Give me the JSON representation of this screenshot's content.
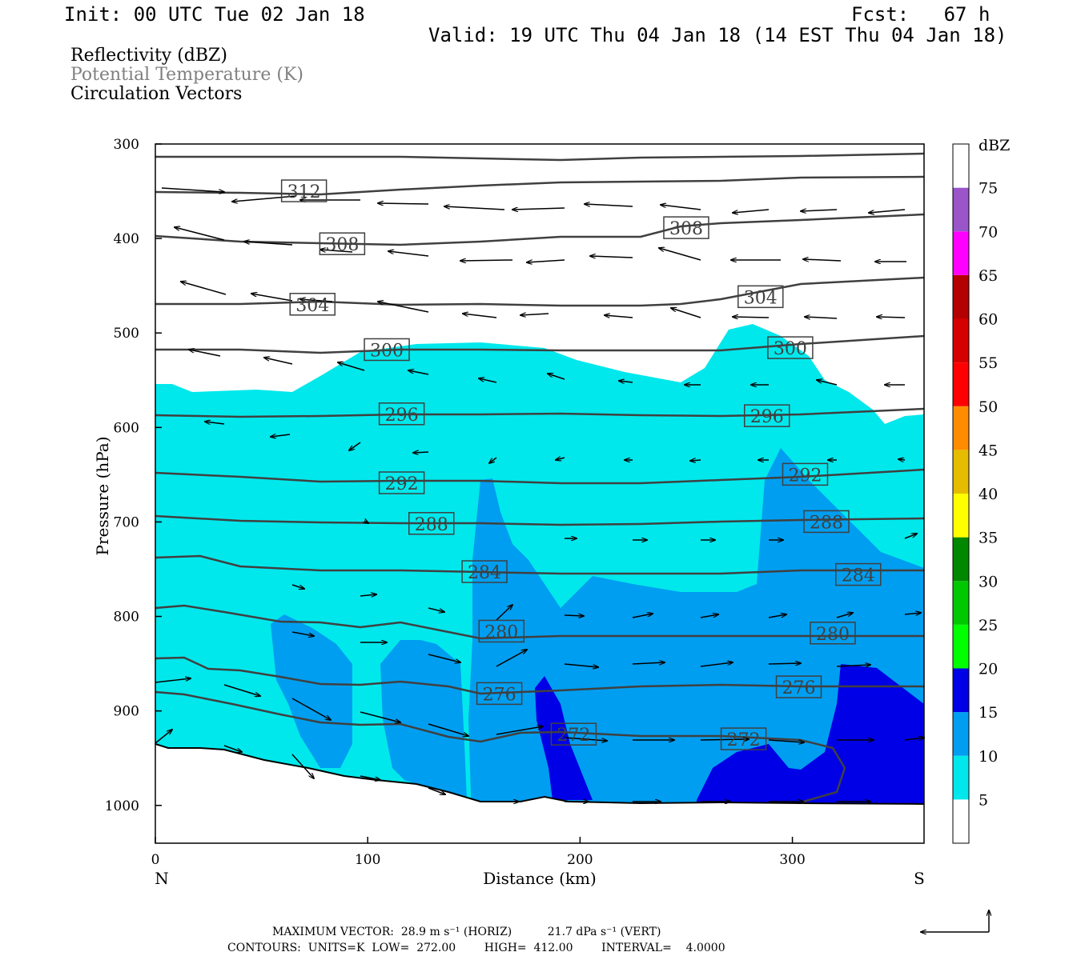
{
  "header": {
    "init": "Init: 00 UTC Tue 02 Jan 18",
    "fcst": "Fcst:   67 h",
    "valid": "Valid: 19 UTC Thu 04 Jan 18 (14 EST Thu 04 Jan 18)"
  },
  "legend": {
    "field1": "Reflectivity (dBZ)",
    "field2": "Potential Temperature (K)",
    "field3": "Circulation Vectors",
    "field2_color": "#808080"
  },
  "footer": {
    "line1": "MAXIMUM VECTOR:  28.9 m s⁻¹ (HORIZ)          21.7 dPa s⁻¹ (VERT)",
    "line2": "CONTOURS:  UNITS=K  LOW=  272.00        HIGH=  412.00        INTERVAL=    4.0000"
  },
  "chart_data": {
    "type": "contour",
    "ylabel": "Pressure (hPa)",
    "xlabel": "Distance (km)",
    "x_end_labels": [
      "N",
      "S"
    ],
    "xlim": [
      0,
      362
    ],
    "ylim": [
      1040,
      300
    ],
    "xticks": [
      0,
      100,
      200,
      300
    ],
    "yticks": [
      300,
      400,
      500,
      600,
      700,
      800,
      900,
      1000
    ],
    "colorbar": {
      "unit": "dBZ",
      "levels": [
        5,
        10,
        15,
        20,
        25,
        30,
        35,
        40,
        45,
        50,
        55,
        60,
        65,
        70,
        75
      ],
      "colors": [
        "#ffffff",
        "#00e8ec",
        "#009ef0",
        "#0000e6",
        "#00ff00",
        "#00c800",
        "#008800",
        "#ffff00",
        "#e6bc00",
        "#ff8c00",
        "#ff0000",
        "#d60000",
        "#b40000",
        "#ff00ff",
        "#9955c9",
        "#ffffff"
      ]
    },
    "theta_contour_labels": [
      {
        "value": "312",
        "x": 70,
        "p": 350
      },
      {
        "value": "308",
        "x": 88,
        "p": 406
      },
      {
        "value": "308",
        "x": 250,
        "p": 389
      },
      {
        "value": "304",
        "x": 74,
        "p": 470
      },
      {
        "value": "304",
        "x": 285,
        "p": 462
      },
      {
        "value": "300",
        "x": 109,
        "p": 518
      },
      {
        "value": "300",
        "x": 299,
        "p": 516
      },
      {
        "value": "296",
        "x": 116,
        "p": 586
      },
      {
        "value": "296",
        "x": 288,
        "p": 588
      },
      {
        "value": "292",
        "x": 116,
        "p": 659
      },
      {
        "value": "292",
        "x": 306,
        "p": 650
      },
      {
        "value": "288",
        "x": 130,
        "p": 702
      },
      {
        "value": "288",
        "x": 316,
        "p": 700
      },
      {
        "value": "284",
        "x": 155,
        "p": 753
      },
      {
        "value": "284",
        "x": 331,
        "p": 756
      },
      {
        "value": "280",
        "x": 163,
        "p": 816
      },
      {
        "value": "280",
        "x": 319,
        "p": 818
      },
      {
        "value": "276",
        "x": 162,
        "p": 882
      },
      {
        "value": "276",
        "x": 303,
        "p": 875
      },
      {
        "value": "272",
        "x": 197,
        "p": 925
      },
      {
        "value": "272",
        "x": 277,
        "p": 930
      }
    ]
  }
}
